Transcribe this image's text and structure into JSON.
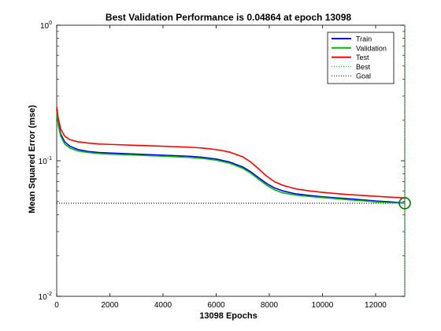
{
  "chart_data": {
    "type": "line",
    "title": "Best Validation Performance is 0.04864 at epoch 13098",
    "xlabel": "13098 Epochs",
    "ylabel": "Mean Squared Error  (mse)",
    "xlim": [
      0,
      13098
    ],
    "ylim": [
      0.01,
      1
    ],
    "yscale": "log",
    "grid": false,
    "legend_position": "top-right",
    "xticks": [
      0,
      2000,
      4000,
      6000,
      8000,
      10000,
      12000
    ],
    "xtick_labels": [
      "0",
      "2000",
      "4000",
      "6000",
      "8000",
      "10000",
      "12000"
    ],
    "yticks": [
      0.01,
      0.1,
      1
    ],
    "ytick_labels": [
      {
        "base": "10",
        "exp": "-2"
      },
      {
        "base": "10",
        "exp": "-1"
      },
      {
        "base": "10",
        "exp": "0"
      }
    ],
    "series": [
      {
        "name": "Train",
        "color": "#0000ff",
        "style": "solid",
        "x": [
          0,
          60,
          150,
          300,
          500,
          800,
          1200,
          1600,
          2000,
          3000,
          4000,
          5000,
          5500,
          6000,
          6500,
          7000,
          7300,
          7600,
          7900,
          8200,
          8500,
          9000,
          9500,
          10000,
          10500,
          11000,
          11500,
          12000,
          12500,
          13098
        ],
        "y": [
          0.24,
          0.19,
          0.158,
          0.138,
          0.128,
          0.121,
          0.117,
          0.115,
          0.114,
          0.112,
          0.11,
          0.108,
          0.106,
          0.103,
          0.098,
          0.09,
          0.083,
          0.075,
          0.068,
          0.063,
          0.06,
          0.057,
          0.0555,
          0.0543,
          0.0533,
          0.0525,
          0.0515,
          0.0505,
          0.0498,
          0.0488
        ]
      },
      {
        "name": "Validation",
        "color": "#00bb00",
        "style": "solid",
        "x": [
          0,
          60,
          150,
          300,
          500,
          800,
          1200,
          1600,
          2000,
          3000,
          4000,
          5000,
          5500,
          6000,
          6500,
          7000,
          7300,
          7600,
          7900,
          8200,
          8500,
          9000,
          9500,
          10000,
          10500,
          11000,
          11500,
          12000,
          12500,
          13098
        ],
        "y": [
          0.235,
          0.183,
          0.152,
          0.133,
          0.124,
          0.118,
          0.115,
          0.113,
          0.112,
          0.11,
          0.108,
          0.106,
          0.104,
          0.101,
          0.096,
          0.088,
          0.081,
          0.073,
          0.066,
          0.061,
          0.058,
          0.0558,
          0.0545,
          0.0535,
          0.0525,
          0.0515,
          0.0507,
          0.0498,
          0.0491,
          0.04864
        ]
      },
      {
        "name": "Test",
        "color": "#ff0000",
        "style": "solid",
        "x": [
          0,
          60,
          150,
          300,
          500,
          800,
          1200,
          1600,
          2000,
          3000,
          4000,
          5000,
          5500,
          6000,
          6500,
          7000,
          7300,
          7600,
          7900,
          8200,
          8500,
          9000,
          9500,
          10000,
          10500,
          11000,
          11500,
          12000,
          12500,
          13098
        ],
        "y": [
          0.25,
          0.205,
          0.172,
          0.152,
          0.143,
          0.138,
          0.135,
          0.133,
          0.132,
          0.13,
          0.128,
          0.126,
          0.124,
          0.121,
          0.116,
          0.107,
          0.098,
          0.087,
          0.077,
          0.07,
          0.066,
          0.062,
          0.06,
          0.0585,
          0.0573,
          0.0563,
          0.0555,
          0.0547,
          0.054,
          0.0532
        ]
      },
      {
        "name": "Best",
        "color": "#00bb00",
        "style": "dotted",
        "x": [
          0,
          13098
        ],
        "y": [
          0.04864,
          0.04864
        ]
      },
      {
        "name": "Goal",
        "color": "#000000",
        "style": "dotted",
        "x": [
          0,
          13098
        ],
        "y": [
          0.04864,
          0.04864
        ]
      }
    ],
    "best_point": {
      "x": 13098,
      "y": 0.04864,
      "color": "#007700"
    },
    "best_vline": {
      "x": 13098,
      "color": "#00bb00",
      "style": "dotted"
    }
  }
}
